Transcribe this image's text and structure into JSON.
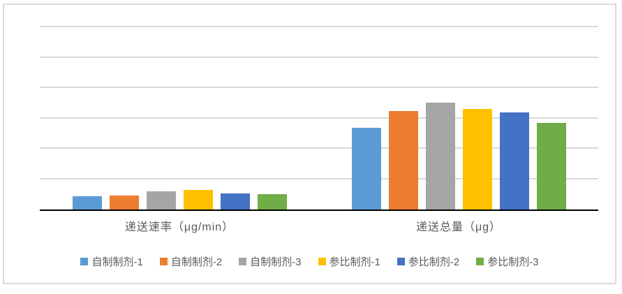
{
  "chart_data": {
    "type": "bar",
    "title": "",
    "categories": [
      "递送速率（μg/min）",
      "递送总量（μg）"
    ],
    "series": [
      {
        "name": "自制制剂-1",
        "color": "#5B9BD5",
        "values": [
          0.44,
          2.69
        ]
      },
      {
        "name": "自制制剂-2",
        "color": "#ED7D31",
        "values": [
          0.46,
          3.24
        ]
      },
      {
        "name": "自制制剂-3",
        "color": "#A5A5A5",
        "values": [
          0.6,
          3.52
        ]
      },
      {
        "name": "参比制剂-1",
        "color": "#FFC000",
        "values": [
          0.64,
          3.31
        ]
      },
      {
        "name": "参比制剂-2",
        "color": "#4472C4",
        "values": [
          0.53,
          3.2
        ]
      },
      {
        "name": "参比制剂-3",
        "color": "#70AD47",
        "values": [
          0.51,
          2.85
        ]
      }
    ],
    "ylim": [
      0,
      6
    ],
    "gridline_interval": 1,
    "y_axis_tick_labels": [],
    "grid": "horizontal",
    "legend_position": "bottom",
    "colors": {
      "gridline": "#D9D9D9",
      "axis_line": "#000000",
      "chart_border": "#D9D9D9",
      "label_text": "#595959",
      "background": "#FFFFFF"
    }
  }
}
